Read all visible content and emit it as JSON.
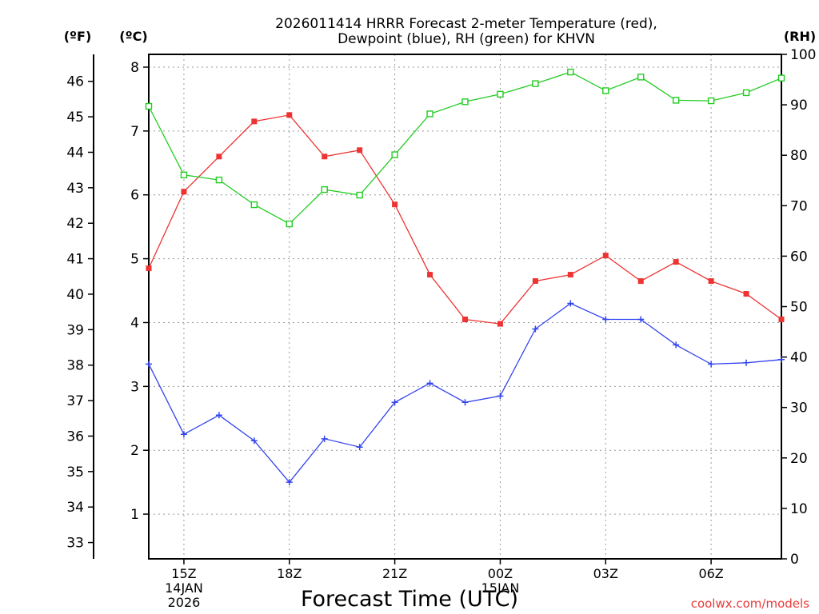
{
  "chart_data": {
    "type": "line",
    "title_lines": [
      "2026011414 HRRR Forecast 2-meter Temperature (red),",
      "Dewpoint (blue), RH (green) for KHVN"
    ],
    "xlabel": "Forecast Time (UTC)",
    "units": {
      "fahrenheit": "(ºF)",
      "celsius": "(ºC)",
      "rh": "(RH)"
    },
    "x_hours": [
      14,
      15,
      16,
      17,
      18,
      19,
      20,
      21,
      22,
      23,
      24,
      25,
      26,
      27,
      28,
      29,
      30,
      31,
      32
    ],
    "xlim": [
      14,
      32
    ],
    "x_ticks": [
      {
        "hour": 15,
        "lines": [
          "15Z",
          "14JAN",
          "2026"
        ]
      },
      {
        "hour": 18,
        "lines": [
          "18Z"
        ]
      },
      {
        "hour": 21,
        "lines": [
          "21Z"
        ]
      },
      {
        "hour": 24,
        "lines": [
          "00Z",
          "15JAN"
        ]
      },
      {
        "hour": 27,
        "lines": [
          "03Z"
        ]
      },
      {
        "hour": 30,
        "lines": [
          "06Z"
        ]
      }
    ],
    "ylim_celsius": [
      0.3,
      8.2
    ],
    "y_left_celsius_ticks": [
      1,
      2,
      3,
      4,
      5,
      6,
      7,
      8
    ],
    "y_left_fahrenheit_ticks": [
      33,
      34,
      35,
      36,
      37,
      38,
      39,
      40,
      41,
      42,
      43,
      44,
      45,
      46
    ],
    "ylim_rh": [
      0,
      100
    ],
    "y_right_rh_ticks": [
      0,
      10,
      20,
      30,
      40,
      50,
      60,
      70,
      80,
      90,
      100
    ],
    "series": [
      {
        "name": "Temperature",
        "color": "#ee3333",
        "axis": "celsius",
        "marker": "filled-square",
        "values": [
          4.85,
          6.05,
          6.6,
          7.15,
          7.25,
          6.6,
          6.7,
          5.85,
          4.75,
          4.05,
          3.98,
          4.65,
          4.75,
          5.05,
          4.65,
          4.95,
          4.65,
          4.45,
          4.05
        ]
      },
      {
        "name": "Dewpoint",
        "color": "#3344ee",
        "axis": "celsius",
        "marker": "plus",
        "values": [
          3.35,
          2.25,
          2.55,
          2.15,
          1.5,
          2.18,
          2.05,
          2.75,
          3.05,
          2.75,
          2.85,
          3.9,
          4.3,
          4.05,
          4.05,
          3.65,
          3.35,
          3.37,
          3.42
        ]
      },
      {
        "name": "RH",
        "color": "#22cc22",
        "axis": "rh",
        "marker": "open-square",
        "values": [
          89.7,
          76.1,
          75.1,
          70.2,
          66.4,
          73.2,
          72.1,
          80.1,
          88.2,
          90.6,
          92.1,
          94.2,
          96.5,
          92.8,
          95.5,
          90.9,
          90.8,
          92.4,
          95.3
        ]
      }
    ],
    "credit": "coolwx.com/models"
  }
}
